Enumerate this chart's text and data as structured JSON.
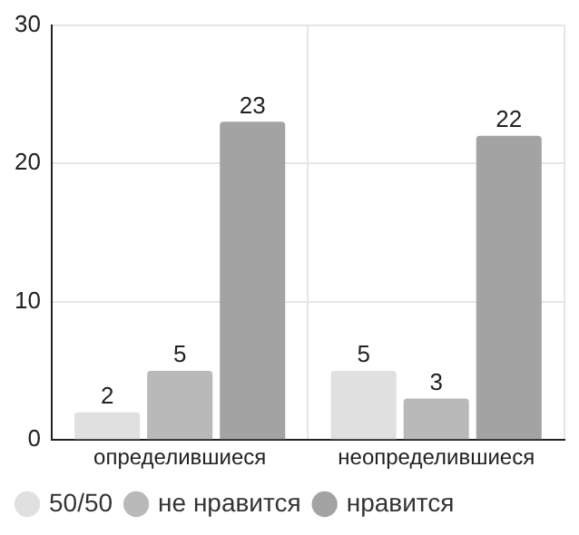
{
  "chart_data": {
    "type": "bar",
    "categories": [
      "определившиеся",
      "неопределившиеся"
    ],
    "series": [
      {
        "name": "50/50",
        "color": "#e0e0e0",
        "values": [
          2,
          5
        ]
      },
      {
        "name": "не нравится",
        "color": "#b9b9b9",
        "values": [
          5,
          3
        ]
      },
      {
        "name": "нравится",
        "color": "#a3a3a3",
        "values": [
          23,
          22
        ]
      }
    ],
    "ylim": [
      0,
      30
    ],
    "yticks": [
      0,
      10,
      20,
      30
    ],
    "grid": true,
    "legend": "bottom",
    "data_labels": true
  }
}
